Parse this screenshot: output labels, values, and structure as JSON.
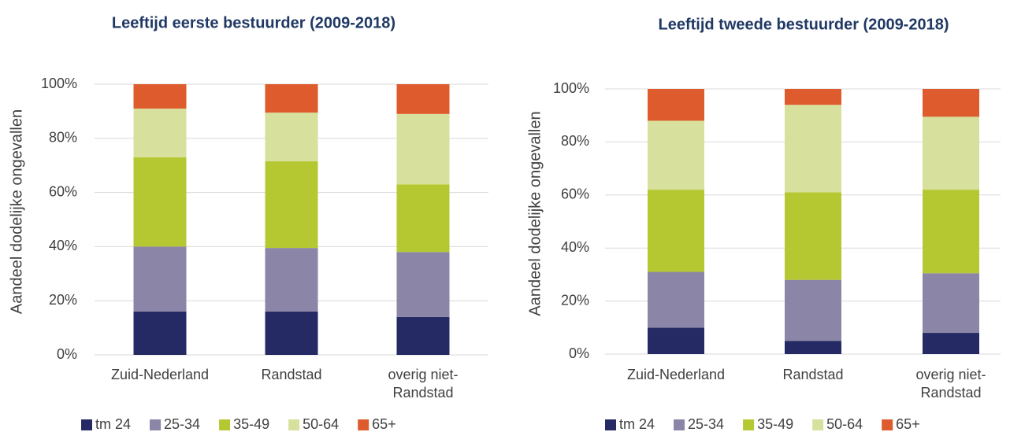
{
  "chart_data": [
    {
      "type": "bar",
      "stacked": true,
      "title": "Leeftijd eerste bestuurder (2009-2018)",
      "y_label": "Aandeel dodelijke ongevallen",
      "categories": [
        "Zuid-Nederland",
        "Randstad",
        "overig niet-Randstad"
      ],
      "series": [
        {
          "name": "tm 24",
          "color": "#262a64",
          "values": [
            16,
            16,
            14
          ]
        },
        {
          "name": "25-34",
          "color": "#8b86a8",
          "values": [
            24,
            23.5,
            24
          ]
        },
        {
          "name": "35-49",
          "color": "#b5c832",
          "values": [
            33,
            32,
            25
          ]
        },
        {
          "name": "50-64",
          "color": "#d7e09c",
          "values": [
            18,
            18,
            26
          ]
        },
        {
          "name": "65+",
          "color": "#dd5b2c",
          "values": [
            9,
            10.5,
            11
          ]
        }
      ],
      "ylim": [
        0,
        100
      ],
      "yticks": [
        {
          "value": 0,
          "label": "0%"
        },
        {
          "value": 20,
          "label": "20%"
        },
        {
          "value": 40,
          "label": "40%"
        },
        {
          "value": 60,
          "label": "60%"
        },
        {
          "value": 80,
          "label": "80%"
        },
        {
          "value": 100,
          "label": "100%"
        }
      ],
      "grid": true,
      "legend": "bottom"
    },
    {
      "type": "bar",
      "stacked": true,
      "title": "Leeftijd tweede bestuurder (2009-2018)",
      "y_label": "Aandeel dodelijke ongevallen",
      "categories": [
        "Zuid-Nederland",
        "Randstad",
        "overig niet-Randstad"
      ],
      "series": [
        {
          "name": "tm 24",
          "color": "#262a64",
          "values": [
            10,
            5,
            8
          ]
        },
        {
          "name": "25-34",
          "color": "#8b86a8",
          "values": [
            21,
            23,
            22.5
          ]
        },
        {
          "name": "35-49",
          "color": "#b5c832",
          "values": [
            31,
            33,
            31.5
          ]
        },
        {
          "name": "50-64",
          "color": "#d7e09c",
          "values": [
            26,
            33,
            27.5
          ]
        },
        {
          "name": "65+",
          "color": "#dd5b2c",
          "values": [
            12,
            6,
            10.5
          ]
        }
      ],
      "ylim": [
        0,
        100
      ],
      "yticks": [
        {
          "value": 0,
          "label": "0%"
        },
        {
          "value": 20,
          "label": "20%"
        },
        {
          "value": 40,
          "label": "40%"
        },
        {
          "value": 60,
          "label": "60%"
        },
        {
          "value": 80,
          "label": "80%"
        },
        {
          "value": 100,
          "label": "100%"
        }
      ],
      "grid": true,
      "legend": "bottom"
    }
  ]
}
